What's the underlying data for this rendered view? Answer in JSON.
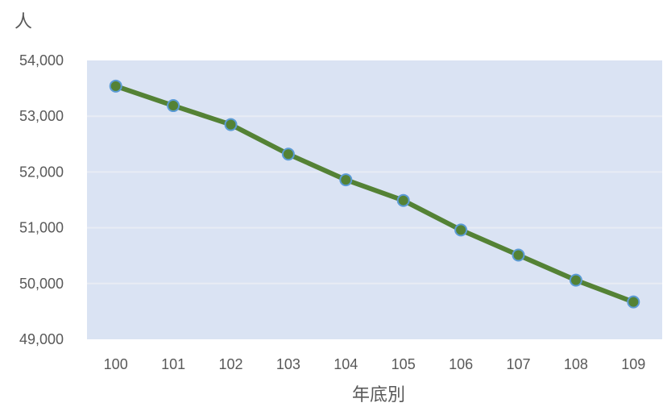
{
  "chart_data": {
    "type": "line",
    "title": "",
    "ylabel": "人",
    "xlabel": "年底別",
    "categories": [
      "100",
      "101",
      "102",
      "103",
      "104",
      "105",
      "106",
      "107",
      "108",
      "109"
    ],
    "series": [
      {
        "values": [
          53540,
          53190,
          52850,
          52320,
          51860,
          51490,
          50960,
          50510,
          50060,
          49670
        ]
      }
    ],
    "ylim": [
      49000,
      54000
    ],
    "yticks": [
      "49,000",
      "50,000",
      "51,000",
      "52,000",
      "53,000",
      "54,000"
    ],
    "grid": true,
    "legend": "none",
    "colors": {
      "plot_background": "#dae3f3",
      "gridline": "#e8ecf4",
      "line": "#548235",
      "marker_fill": "#548235",
      "marker_edge": "#5b9bd5"
    }
  }
}
